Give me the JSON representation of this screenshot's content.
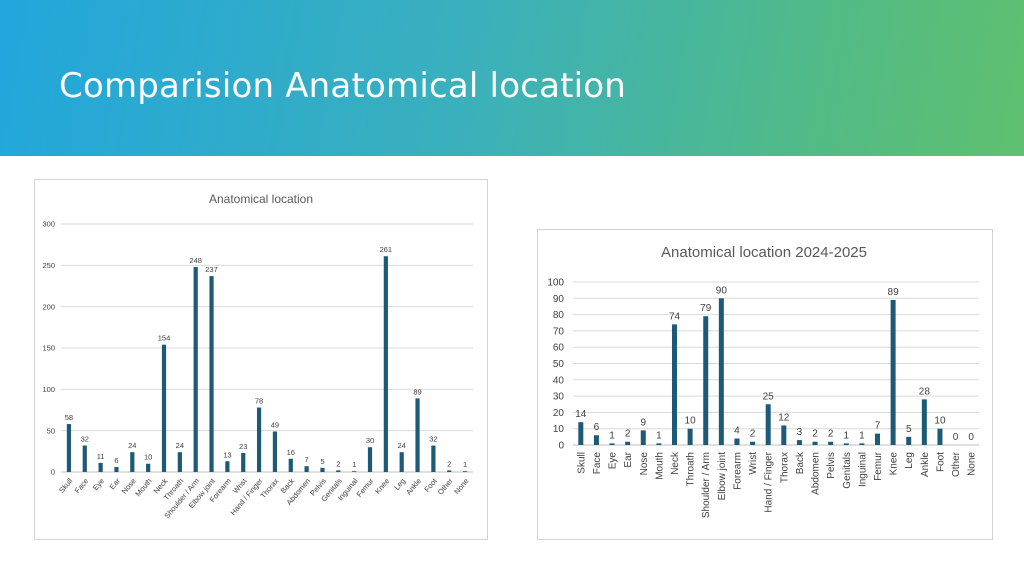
{
  "slide": {
    "title": "Comparision Anatomical location"
  },
  "colors": {
    "bar": "#1d5a78",
    "banner_start": "#22a6dc",
    "banner_end": "#5fc06f"
  },
  "chart_data": [
    {
      "type": "bar",
      "title": "Anatomical location",
      "categories": [
        "Skull",
        "Face",
        "Eye",
        "Ear",
        "Nose",
        "Mouth",
        "Neck",
        "Throath",
        "Shoulder / Arm",
        "Elbow joint",
        "Forearm",
        "Wrist",
        "Hand / Finger",
        "Thorax",
        "Back",
        "Abdomen",
        "Pelvis",
        "Genitals",
        "Inguinal",
        "Femur",
        "Knee",
        "Leg",
        "Ankle",
        "Foot",
        "Other",
        "None"
      ],
      "values": [
        58,
        32,
        11,
        6,
        24,
        10,
        154,
        24,
        248,
        237,
        13,
        23,
        78,
        49,
        16,
        7,
        5,
        2,
        1,
        30,
        261,
        24,
        89,
        32,
        2,
        1
      ],
      "yticks": [
        0,
        50,
        100,
        150,
        200,
        250,
        300
      ],
      "ylim": [
        0,
        300
      ],
      "grid": true,
      "xlabel": "",
      "ylabel": ""
    },
    {
      "type": "bar",
      "title": "Anatomical location 2024-2025",
      "categories": [
        "Skull",
        "Face",
        "Eye",
        "Ear",
        "Nose",
        "Mouth",
        "Neck",
        "Throath",
        "Shoulder / Arm",
        "Elbow joint",
        "Forearm",
        "Wrist",
        "Hand / Finger",
        "Thorax",
        "Back",
        "Abdomen",
        "Pelvis",
        "Genitals",
        "Inguinal",
        "Femur",
        "Knee",
        "Leg",
        "Ankle",
        "Foot",
        "Other",
        "None"
      ],
      "values": [
        14,
        6,
        1,
        2,
        9,
        1,
        74,
        10,
        79,
        90,
        4,
        2,
        25,
        12,
        3,
        2,
        2,
        1,
        1,
        7,
        89,
        5,
        28,
        10,
        0,
        0
      ],
      "yticks": [
        0,
        10,
        20,
        30,
        40,
        50,
        60,
        70,
        80,
        90,
        100
      ],
      "ylim": [
        0,
        100
      ],
      "grid": true,
      "xlabel": "",
      "ylabel": ""
    }
  ]
}
